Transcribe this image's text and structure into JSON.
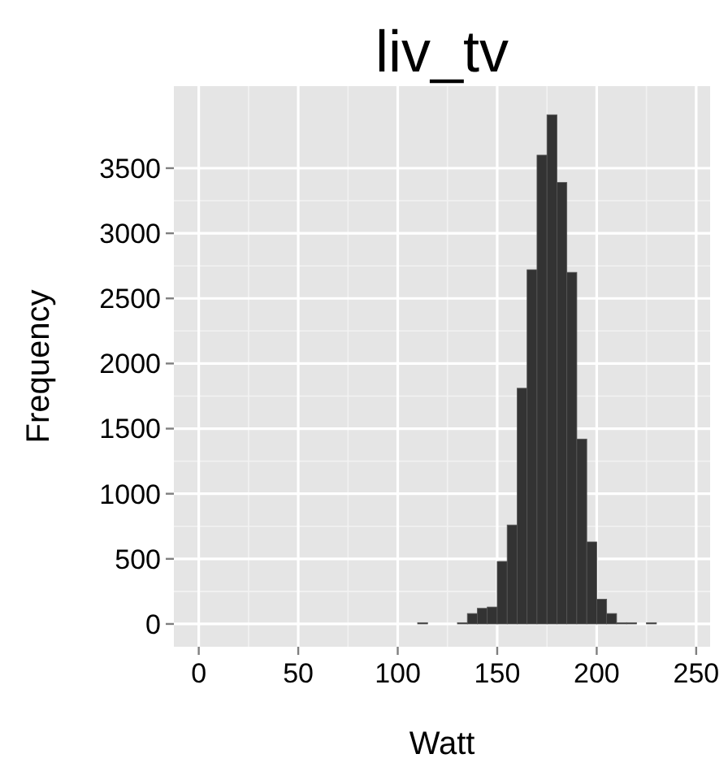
{
  "chart_data": {
    "type": "histogram",
    "title": "liv_tv",
    "xlabel": "Watt",
    "ylabel": "Frequency",
    "bins": [
      110,
      115,
      120,
      125,
      130,
      135,
      140,
      145,
      150,
      155,
      160,
      165,
      170,
      175,
      180,
      185,
      190,
      195,
      200,
      205,
      210,
      215,
      220,
      225,
      230
    ],
    "values": [
      10,
      0,
      0,
      0,
      10,
      80,
      120,
      130,
      480,
      760,
      1810,
      2720,
      3600,
      3910,
      3390,
      2700,
      1420,
      630,
      190,
      80,
      10,
      10,
      0,
      10
    ],
    "color": "#333333",
    "xlim": [
      -12.5,
      257
    ],
    "ylim": [
      -175,
      4130
    ],
    "xticks": [
      0,
      50,
      100,
      150,
      200,
      250
    ],
    "yticks": [
      0,
      500,
      1000,
      1500,
      2000,
      2500,
      3000,
      3500
    ],
    "grid": true
  }
}
